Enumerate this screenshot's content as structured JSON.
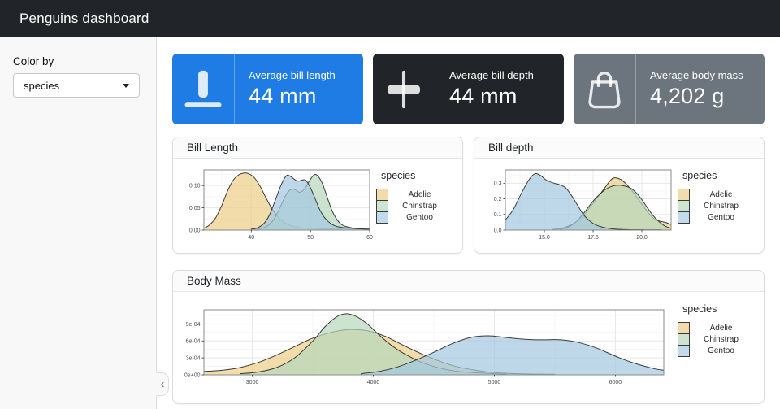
{
  "navbar": {
    "title": "Penguins dashboard",
    "bg": "#212529"
  },
  "sidebar": {
    "color_by_label": "Color by",
    "species_select": {
      "value": "species"
    },
    "collapse_icon": "‹"
  },
  "value_boxes": [
    {
      "title": "Average bill length",
      "value": "44 mm",
      "icon": "align-bottom-icon",
      "bg": "#1f7ce4",
      "fg": "#ffffff"
    },
    {
      "title": "Average bill depth",
      "value": "44 mm",
      "icon": "align-center-icon",
      "bg": "#212529",
      "fg": "#ffffff"
    },
    {
      "title": "Average body mass",
      "value": "4,202 g",
      "icon": "handbag-icon",
      "bg": "#6c757d",
      "fg": "#ffffff"
    }
  ],
  "cards": {
    "bill_length": {
      "title": "Bill Length"
    },
    "bill_depth": {
      "title": "Bill depth"
    },
    "body_mass": {
      "title": "Body Mass"
    }
  },
  "legend": {
    "title": "species",
    "entries": [
      {
        "label": "Adelie",
        "swatch": "#f2dcab"
      },
      {
        "label": "Chinstrap",
        "swatch": "#cde4d1"
      },
      {
        "label": "Gentoo",
        "swatch": "#c1dbec"
      }
    ]
  },
  "chart_data": [
    {
      "type": "area",
      "title": "Bill Length",
      "xlabel": "",
      "ylabel": "",
      "xlim": [
        32,
        60
      ],
      "ylim": [
        0,
        0.135
      ],
      "xticks": [
        40,
        50,
        60
      ],
      "xtick_labels": [
        "40",
        "50",
        "60"
      ],
      "yticks": [
        0,
        0.05,
        0.1
      ],
      "ytick_labels": [
        "0.00",
        "0.05",
        "0.10"
      ],
      "grid": true,
      "legend_position": "right",
      "stroke": "#3b3b3b",
      "fill_opacity": 0.7,
      "series": [
        {
          "name": "Adelie",
          "fill": "#edcd86",
          "points": [
            [
              32,
              0.004
            ],
            [
              33,
              0.012
            ],
            [
              34,
              0.028
            ],
            [
              35,
              0.055
            ],
            [
              36,
              0.088
            ],
            [
              37,
              0.113
            ],
            [
              38,
              0.125
            ],
            [
              38.8,
              0.128
            ],
            [
              39.5,
              0.127
            ],
            [
              40.5,
              0.118
            ],
            [
              41.5,
              0.098
            ],
            [
              42.5,
              0.072
            ],
            [
              43.5,
              0.048
            ],
            [
              44.5,
              0.03
            ],
            [
              45.5,
              0.018
            ],
            [
              46.5,
              0.011
            ],
            [
              48,
              0.006
            ],
            [
              50,
              0.004
            ],
            [
              52,
              0.003
            ],
            [
              54,
              0.003
            ],
            [
              56,
              0.003
            ],
            [
              58,
              0.002
            ],
            [
              60,
              0.002
            ]
          ]
        },
        {
          "name": "Chinstrap",
          "fill": "#b5d7ba",
          "points": [
            [
              40.5,
              0.002
            ],
            [
              42,
              0.005
            ],
            [
              43,
              0.012
            ],
            [
              44,
              0.028
            ],
            [
              45,
              0.055
            ],
            [
              46,
              0.082
            ],
            [
              46.8,
              0.092
            ],
            [
              47.5,
              0.09
            ],
            [
              48.2,
              0.085
            ],
            [
              49,
              0.092
            ],
            [
              49.8,
              0.11
            ],
            [
              50.6,
              0.124
            ],
            [
              51.2,
              0.122
            ],
            [
              52,
              0.105
            ],
            [
              52.8,
              0.075
            ],
            [
              53.6,
              0.045
            ],
            [
              54.4,
              0.025
            ],
            [
              55.2,
              0.013
            ],
            [
              56,
              0.008
            ],
            [
              57,
              0.005
            ],
            [
              58.5,
              0.003
            ],
            [
              60,
              0.002
            ]
          ]
        },
        {
          "name": "Gentoo",
          "fill": "#a2c7e1",
          "points": [
            [
              40,
              0.002
            ],
            [
              41,
              0.005
            ],
            [
              42,
              0.013
            ],
            [
              43,
              0.032
            ],
            [
              44,
              0.065
            ],
            [
              45,
              0.1
            ],
            [
              45.8,
              0.12
            ],
            [
              46.3,
              0.123
            ],
            [
              47,
              0.117
            ],
            [
              47.8,
              0.11
            ],
            [
              48.5,
              0.112
            ],
            [
              49.2,
              0.112
            ],
            [
              50,
              0.095
            ],
            [
              50.8,
              0.07
            ],
            [
              51.6,
              0.045
            ],
            [
              52.5,
              0.026
            ],
            [
              53.5,
              0.014
            ],
            [
              54.5,
              0.008
            ],
            [
              56,
              0.005
            ],
            [
              58,
              0.003
            ],
            [
              60,
              0.002
            ]
          ]
        }
      ]
    },
    {
      "type": "area",
      "title": "Bill depth",
      "xlabel": "",
      "ylabel": "",
      "xlim": [
        13,
        21.5
      ],
      "ylim": [
        0,
        0.385
      ],
      "xticks": [
        15.0,
        17.5,
        20.0
      ],
      "xtick_labels": [
        "15.0",
        "17.5",
        "20.0"
      ],
      "yticks": [
        0,
        0.1,
        0.2,
        0.3
      ],
      "ytick_labels": [
        "0.0",
        "0.1",
        "0.2",
        "0.3"
      ],
      "grid": true,
      "legend_position": "right",
      "stroke": "#3b3b3b",
      "fill_opacity": 0.7,
      "series": [
        {
          "name": "Adelie",
          "fill": "#edcd86",
          "points": [
            [
              15.4,
              0.004
            ],
            [
              15.9,
              0.012
            ],
            [
              16.4,
              0.035
            ],
            [
              16.9,
              0.08
            ],
            [
              17.3,
              0.14
            ],
            [
              17.7,
              0.205
            ],
            [
              18.1,
              0.27
            ],
            [
              18.4,
              0.32
            ],
            [
              18.6,
              0.335
            ],
            [
              18.9,
              0.325
            ],
            [
              19.2,
              0.295
            ],
            [
              19.5,
              0.25
            ],
            [
              19.8,
              0.2
            ],
            [
              20.1,
              0.15
            ],
            [
              20.4,
              0.1
            ],
            [
              20.7,
              0.068
            ],
            [
              21,
              0.055
            ],
            [
              21.2,
              0.05
            ],
            [
              21.5,
              0.035
            ]
          ]
        },
        {
          "name": "Chinstrap",
          "fill": "#b5d7ba",
          "points": [
            [
              15.8,
              0.005
            ],
            [
              16.2,
              0.018
            ],
            [
              16.6,
              0.05
            ],
            [
              17,
              0.105
            ],
            [
              17.4,
              0.17
            ],
            [
              17.8,
              0.225
            ],
            [
              18.2,
              0.265
            ],
            [
              18.6,
              0.285
            ],
            [
              19,
              0.285
            ],
            [
              19.4,
              0.27
            ],
            [
              19.7,
              0.24
            ],
            [
              20,
              0.195
            ],
            [
              20.3,
              0.14
            ],
            [
              20.6,
              0.09
            ],
            [
              20.9,
              0.052
            ],
            [
              21.2,
              0.025
            ],
            [
              21.5,
              0.012
            ]
          ]
        },
        {
          "name": "Gentoo",
          "fill": "#a2c7e1",
          "points": [
            [
              13,
              0.065
            ],
            [
              13.4,
              0.13
            ],
            [
              13.8,
              0.23
            ],
            [
              14.2,
              0.32
            ],
            [
              14.5,
              0.36
            ],
            [
              14.8,
              0.35
            ],
            [
              15.1,
              0.32
            ],
            [
              15.5,
              0.3
            ],
            [
              15.8,
              0.29
            ],
            [
              16.1,
              0.27
            ],
            [
              16.4,
              0.22
            ],
            [
              16.7,
              0.16
            ],
            [
              17,
              0.1
            ],
            [
              17.3,
              0.062
            ],
            [
              17.6,
              0.036
            ],
            [
              18,
              0.018
            ],
            [
              18.5,
              0.008
            ],
            [
              19,
              0.004
            ],
            [
              19.8,
              0.002
            ],
            [
              21,
              0.001
            ]
          ]
        }
      ]
    },
    {
      "type": "area",
      "title": "Body Mass",
      "xlabel": "",
      "ylabel": "",
      "xlim": [
        2600,
        6400
      ],
      "ylim": [
        0,
        0.00115
      ],
      "xticks": [
        3000,
        4000,
        5000,
        6000
      ],
      "xtick_labels": [
        "3000",
        "4000",
        "5000",
        "6000"
      ],
      "yticks": [
        0,
        0.0003,
        0.0006,
        0.0009
      ],
      "ytick_labels": [
        "0e+00",
        "3e-04",
        "6e-04",
        "9e-04"
      ],
      "grid": true,
      "legend_position": "right",
      "stroke": "#3b3b3b",
      "fill_opacity": 0.7,
      "series": [
        {
          "name": "Adelie",
          "fill": "#edcd86",
          "points": [
            [
              2600,
              6e-05
            ],
            [
              2750,
              8e-05
            ],
            [
              2900,
              0.00013
            ],
            [
              3050,
              0.00022
            ],
            [
              3200,
              0.00035
            ],
            [
              3350,
              0.0005
            ],
            [
              3500,
              0.00065
            ],
            [
              3650,
              0.00075
            ],
            [
              3800,
              0.0008
            ],
            [
              3950,
              0.00078
            ],
            [
              4100,
              0.00068
            ],
            [
              4250,
              0.00052
            ],
            [
              4400,
              0.00037
            ],
            [
              4550,
              0.00024
            ],
            [
              4700,
              0.00014
            ],
            [
              4850,
              8e-05
            ],
            [
              5000,
              4e-05
            ],
            [
              5200,
              2e-05
            ],
            [
              5500,
              1e-05
            ]
          ]
        },
        {
          "name": "Chinstrap",
          "fill": "#b5d7ba",
          "points": [
            [
              2900,
              2e-05
            ],
            [
              3050,
              5e-05
            ],
            [
              3200,
              0.00013
            ],
            [
              3350,
              0.0003
            ],
            [
              3500,
              0.0006
            ],
            [
              3600,
              0.00085
            ],
            [
              3700,
              0.00103
            ],
            [
              3780,
              0.00108
            ],
            [
              3860,
              0.00103
            ],
            [
              3950,
              0.0009
            ],
            [
              4050,
              0.0007
            ],
            [
              4150,
              0.00052
            ],
            [
              4250,
              0.00038
            ],
            [
              4400,
              0.00022
            ],
            [
              4550,
              0.00012
            ],
            [
              4700,
              6e-05
            ],
            [
              4900,
              3e-05
            ],
            [
              5100,
              1e-05
            ]
          ]
        },
        {
          "name": "Gentoo",
          "fill": "#a2c7e1",
          "points": [
            [
              3900,
              2e-05
            ],
            [
              4050,
              6e-05
            ],
            [
              4200,
              0.00014
            ],
            [
              4350,
              0.00026
            ],
            [
              4500,
              0.0004
            ],
            [
              4650,
              0.00055
            ],
            [
              4800,
              0.00066
            ],
            [
              4950,
              0.00069
            ],
            [
              5100,
              0.00066
            ],
            [
              5250,
              0.00063
            ],
            [
              5400,
              0.00062
            ],
            [
              5550,
              0.00062
            ],
            [
              5700,
              0.00057
            ],
            [
              5850,
              0.00047
            ],
            [
              6000,
              0.00033
            ],
            [
              6150,
              0.00021
            ],
            [
              6300,
              0.00012
            ],
            [
              6400,
              8e-05
            ]
          ]
        }
      ]
    }
  ]
}
